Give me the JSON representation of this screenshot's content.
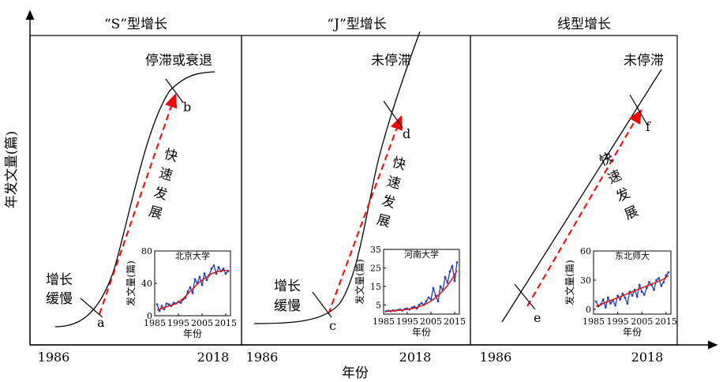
{
  "axes": {
    "ylabel": "年发文量(篇)",
    "xlabel": "年份"
  },
  "colors": {
    "curve": "#000000",
    "arrow": "#ff0000",
    "inset_raw": "#1f3fbf",
    "inset_fit": "#ff0000"
  },
  "panels": [
    {
      "title": "“S”型增长",
      "x_start": "1986",
      "x_end": "2018",
      "labels": {
        "slow": [
          "增长",
          "缓慢"
        ],
        "fast": [
          "快",
          "速",
          "发",
          "展"
        ],
        "end": "停滞或衰退",
        "p1": "a",
        "p2": "b"
      }
    },
    {
      "title": "“J”型增长",
      "x_start": "1986",
      "x_end": "2018",
      "labels": {
        "slow": [
          "增长",
          "缓慢"
        ],
        "fast": [
          "快",
          "速",
          "发",
          "展"
        ],
        "end": "未停滞",
        "p1": "c",
        "p2": "d"
      }
    },
    {
      "title": "线型增长",
      "x_start": "1986",
      "x_end": "2018",
      "labels": {
        "fast": [
          "快",
          "速",
          "发",
          "展"
        ],
        "end": "未停滞",
        "p1": "e",
        "p2": "f"
      }
    }
  ],
  "chart_data": [
    {
      "type": "line",
      "title": "北京大学",
      "xlabel": "年份",
      "ylabel": "发文量(篇)",
      "xlim": [
        1985,
        2017
      ],
      "ylim": [
        0,
        80
      ],
      "xticks": [
        "1985",
        "1995",
        "2005",
        "2015"
      ],
      "yticks": [
        "0",
        "40",
        "80"
      ],
      "x": [
        1986,
        1987,
        1988,
        1989,
        1990,
        1991,
        1992,
        1993,
        1994,
        1995,
        1996,
        1997,
        1998,
        1999,
        2000,
        2001,
        2002,
        2003,
        2004,
        2005,
        2006,
        2007,
        2008,
        2009,
        2010,
        2011,
        2012,
        2013,
        2014,
        2015,
        2016
      ],
      "series": [
        {
          "values": [
            14,
            6,
            12,
            8,
            15,
            14,
            12,
            16,
            15,
            17,
            16,
            20,
            22,
            30,
            35,
            28,
            45,
            40,
            48,
            38,
            52,
            44,
            50,
            58,
            62,
            52,
            60,
            55,
            58,
            52,
            55
          ]
        },
        {
          "values": [
            7,
            8,
            9,
            10,
            11,
            12,
            13,
            14,
            15,
            17,
            19,
            21,
            24,
            27,
            30,
            33,
            36,
            39,
            42,
            44,
            46,
            48,
            50,
            52,
            53,
            54,
            55,
            55,
            56,
            56,
            56
          ]
        }
      ]
    },
    {
      "type": "line",
      "title": "河南大学",
      "xlabel": "年份",
      "ylabel": "发文量(篇)",
      "xlim": [
        1985,
        2017
      ],
      "ylim": [
        0,
        35
      ],
      "xticks": [
        "1985",
        "1995",
        "2005",
        "2015"
      ],
      "yticks": [
        "5",
        "15",
        "25",
        "35"
      ],
      "x": [
        1986,
        1987,
        1988,
        1989,
        1990,
        1991,
        1992,
        1993,
        1994,
        1995,
        1996,
        1997,
        1998,
        1999,
        2000,
        2001,
        2002,
        2003,
        2004,
        2005,
        2006,
        2007,
        2008,
        2009,
        2010,
        2011,
        2012,
        2013,
        2014,
        2015,
        2016
      ],
      "series": [
        {
          "values": [
            1.5,
            1.8,
            1.6,
            2.0,
            1.8,
            2.2,
            2.5,
            2.0,
            2.8,
            3.0,
            2.5,
            3.5,
            4.0,
            3.0,
            5.0,
            6.0,
            5.0,
            7.0,
            9.0,
            8.0,
            14.0,
            10.0,
            7.0,
            15.0,
            13.0,
            20.0,
            17.0,
            23.0,
            26.0,
            18.0,
            28.0
          ]
        },
        {
          "values": [
            1.5,
            1.6,
            1.7,
            1.8,
            1.9,
            2.0,
            2.1,
            2.2,
            2.4,
            2.6,
            2.8,
            3.0,
            3.3,
            3.6,
            4.0,
            4.5,
            5.0,
            5.6,
            6.3,
            7.1,
            8.0,
            9.0,
            10.1,
            11.3,
            12.6,
            14.0,
            15.6,
            17.3,
            19.2,
            21.3,
            23.5
          ]
        }
      ]
    },
    {
      "type": "line",
      "title": "东北师大",
      "xlabel": "年份",
      "ylabel": "发文量(篇)",
      "xlim": [
        1985,
        2017
      ],
      "ylim": [
        -5,
        60
      ],
      "xticks": [
        "1985",
        "1995",
        "2005",
        "2015"
      ],
      "yticks": [
        "0",
        "30",
        "60"
      ],
      "x": [
        1986,
        1987,
        1988,
        1989,
        1990,
        1991,
        1992,
        1993,
        1994,
        1995,
        1996,
        1997,
        1998,
        1999,
        2000,
        2001,
        2002,
        2003,
        2004,
        2005,
        2006,
        2007,
        2008,
        2009,
        2010,
        2011,
        2012,
        2013,
        2014,
        2015,
        2016
      ],
      "series": [
        {
          "values": [
            8,
            3,
            5,
            10,
            2,
            12,
            6,
            9,
            4,
            14,
            10,
            16,
            12,
            6,
            18,
            14,
            20,
            13,
            25,
            18,
            15,
            22,
            28,
            25,
            20,
            30,
            32,
            24,
            28,
            35,
            38
          ]
        },
        {
          "values": [
            3,
            4,
            5,
            6,
            7,
            8,
            9,
            10,
            11,
            12,
            13,
            14,
            15,
            16,
            17,
            18,
            19,
            20,
            21,
            22,
            23,
            24,
            25,
            26,
            27,
            28,
            29,
            30,
            31,
            33,
            35
          ]
        }
      ]
    }
  ]
}
